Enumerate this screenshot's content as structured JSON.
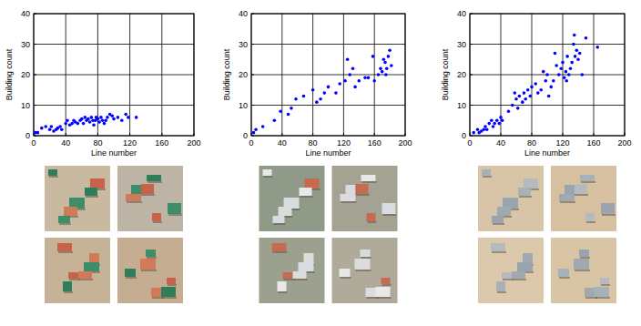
{
  "chart_data": [
    {
      "type": "scatter",
      "x_label": "Line number",
      "y_label": "Building count",
      "color": "#0000ff",
      "grid": true,
      "xlim": [
        0,
        200
      ],
      "xticks": [
        0,
        40,
        80,
        120,
        160,
        200
      ],
      "ylim": [
        0,
        40
      ],
      "yticks": [
        0,
        10,
        20,
        30,
        40
      ],
      "x": [
        2,
        5,
        10,
        15,
        20,
        22,
        25,
        28,
        30,
        33,
        35,
        40,
        42,
        45,
        48,
        50,
        52,
        55,
        58,
        60,
        62,
        64,
        66,
        68,
        70,
        72,
        74,
        75,
        77,
        78,
        80,
        82,
        84,
        86,
        88,
        90,
        92,
        95,
        98,
        100,
        105,
        110,
        115,
        118,
        128
      ],
      "values": [
        1,
        1,
        2.5,
        3,
        2,
        3,
        1.5,
        2,
        2.5,
        3,
        2,
        4,
        5,
        3.5,
        4,
        5,
        4.5,
        4,
        5,
        5.5,
        4,
        6,
        5,
        5.5,
        4.5,
        6,
        5,
        3.5,
        5,
        6,
        5.5,
        4.5,
        6,
        5,
        4,
        5,
        6,
        7,
        6.5,
        5.5,
        6,
        5,
        7,
        6,
        6
      ]
    },
    {
      "type": "scatter",
      "x_label": "Line number",
      "y_label": "Building count",
      "color": "#0000ff",
      "grid": true,
      "xlim": [
        0,
        200
      ],
      "xticks": [
        0,
        40,
        80,
        120,
        160,
        200
      ],
      "ylim": [
        0,
        40
      ],
      "yticks": [
        0,
        10,
        20,
        30,
        40
      ],
      "x": [
        3,
        6,
        15,
        30,
        38,
        48,
        52,
        58,
        68,
        80,
        85,
        90,
        95,
        100,
        110,
        115,
        122,
        125,
        128,
        132,
        135,
        140,
        148,
        152,
        158,
        160,
        165,
        168,
        170,
        172,
        174,
        175,
        176,
        178,
        180,
        182
      ],
      "values": [
        1,
        2,
        3,
        5,
        8,
        7,
        9,
        12,
        13,
        15,
        11,
        12,
        14,
        16,
        14,
        17,
        18,
        25,
        20,
        22,
        16,
        18,
        19,
        19,
        26,
        18,
        20,
        22,
        21,
        25,
        24,
        20,
        22,
        26,
        28,
        23
      ]
    },
    {
      "type": "scatter",
      "x_label": "Line number",
      "y_label": "Building count",
      "color": "#0000ff",
      "grid": true,
      "xlim": [
        0,
        200
      ],
      "xticks": [
        0,
        40,
        80,
        120,
        160,
        200
      ],
      "ylim": [
        0,
        40
      ],
      "yticks": [
        0,
        10,
        20,
        30,
        40
      ],
      "x": [
        5,
        10,
        12,
        15,
        18,
        20,
        22,
        25,
        28,
        30,
        32,
        35,
        38,
        40,
        42,
        50,
        55,
        58,
        60,
        62,
        64,
        68,
        70,
        72,
        75,
        78,
        80,
        85,
        88,
        92,
        95,
        98,
        100,
        102,
        105,
        108,
        110,
        112,
        115,
        118,
        120,
        122,
        124,
        125,
        126,
        128,
        130,
        132,
        134,
        135,
        136,
        138,
        140,
        142,
        145,
        150,
        165
      ],
      "values": [
        1,
        2,
        1,
        1.5,
        2,
        3,
        2,
        4,
        5,
        3,
        4,
        5,
        4,
        6,
        5,
        8,
        10,
        14,
        12,
        9,
        13,
        11,
        14,
        12,
        15,
        13,
        16,
        17,
        14,
        15,
        21,
        18,
        20,
        13,
        16,
        18,
        27,
        23,
        20,
        22,
        24,
        19,
        21,
        18,
        26,
        20,
        22,
        24,
        30,
        33,
        26,
        28,
        25,
        27,
        20,
        32,
        29
      ]
    }
  ]
}
